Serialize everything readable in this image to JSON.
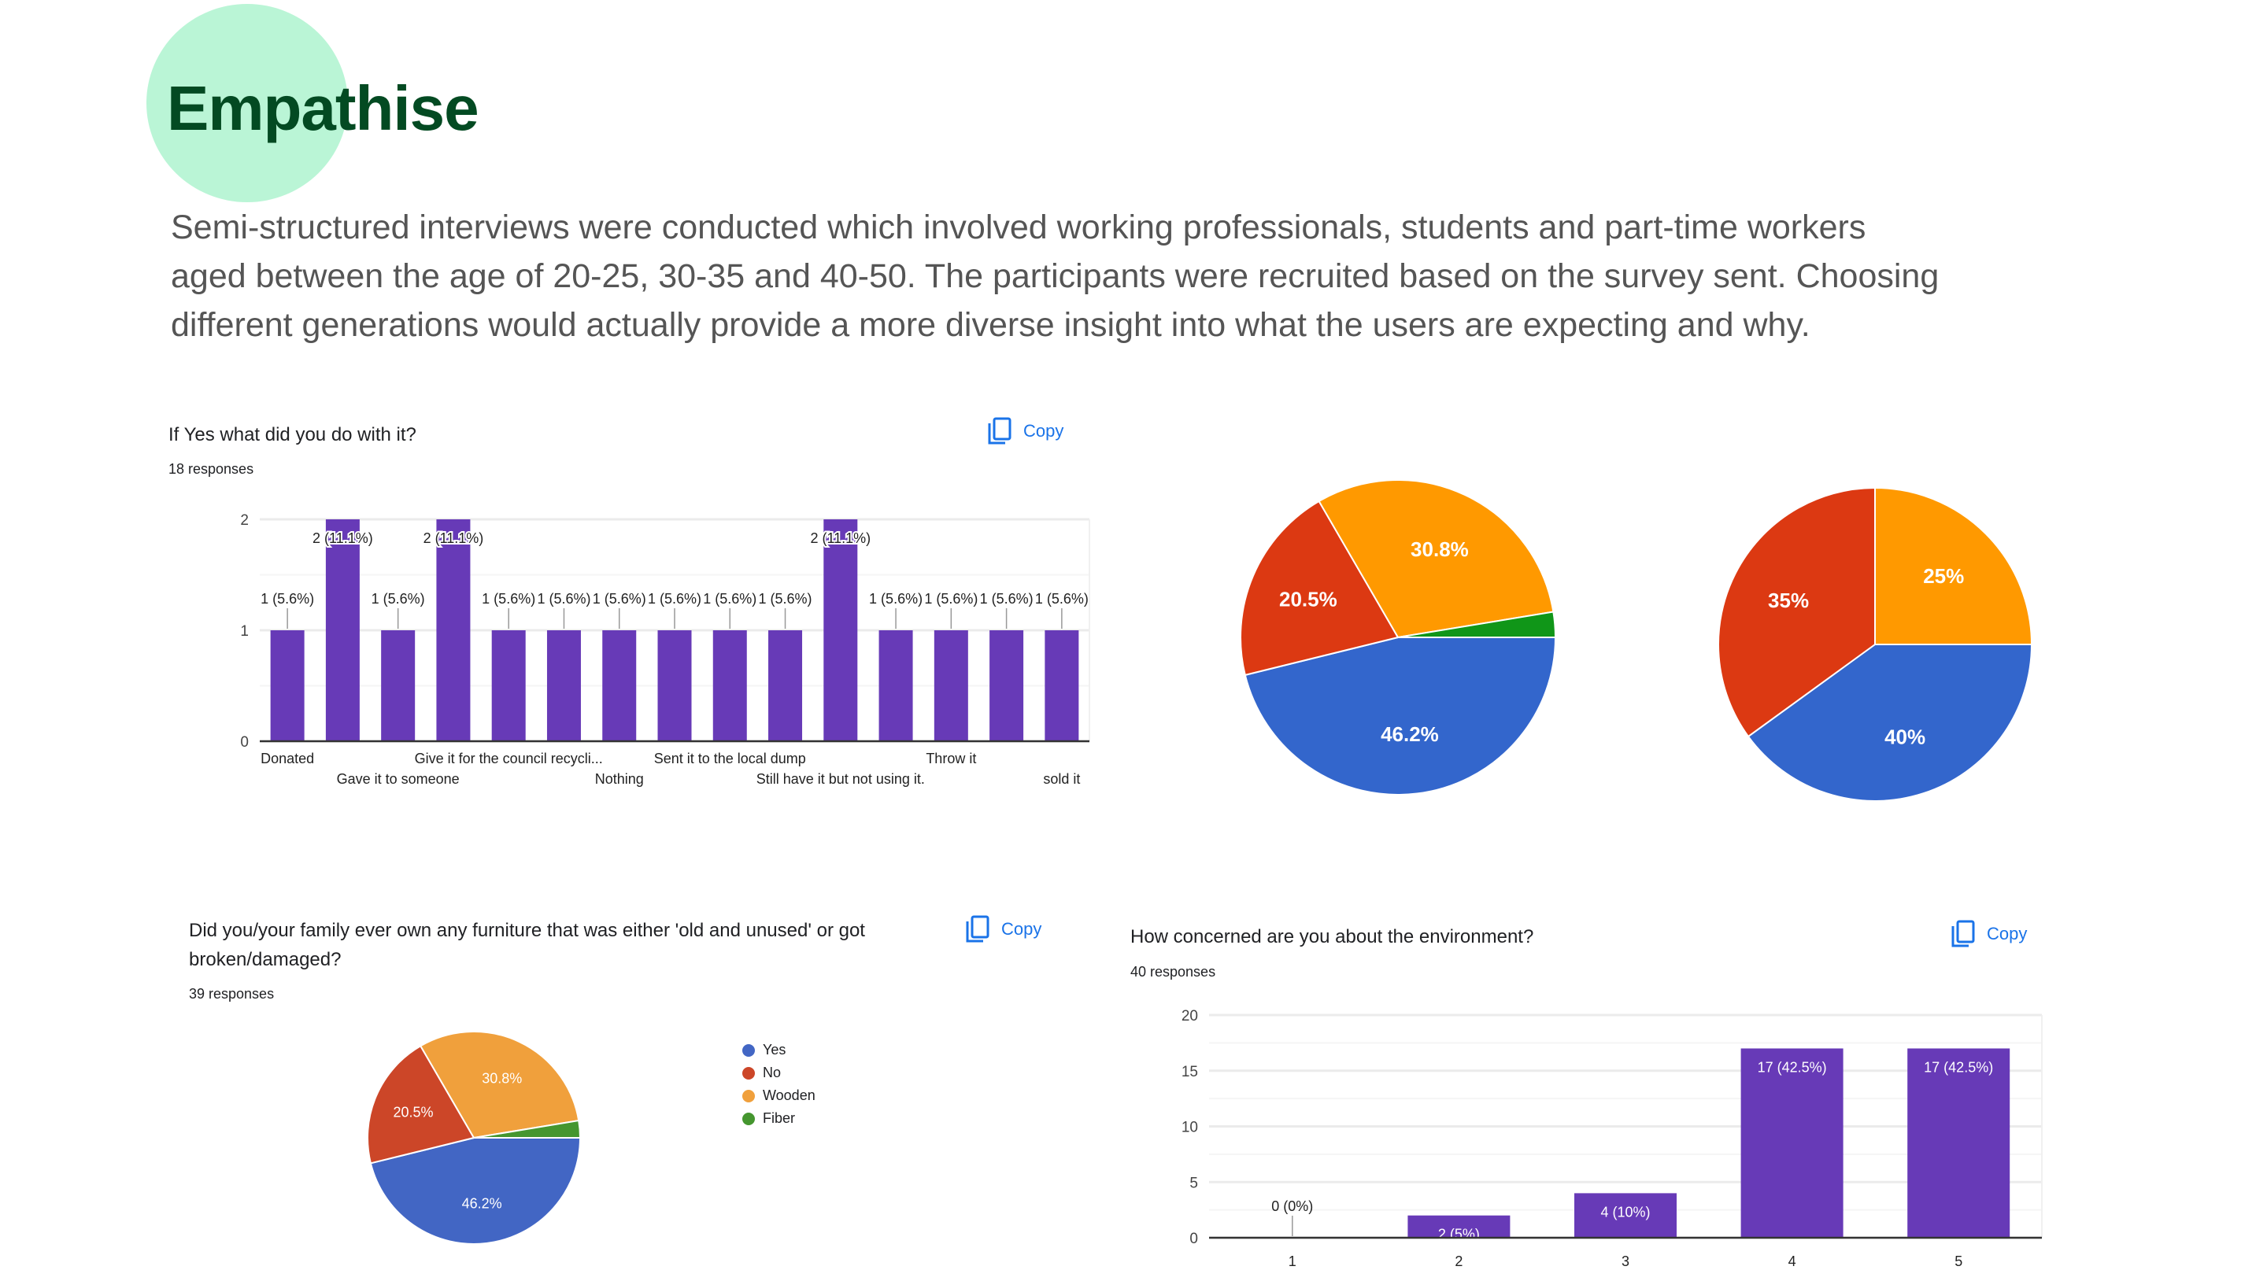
{
  "header": {
    "title": "Empathise",
    "paragraph_lines": [
      "Semi-structured interviews were conducted which involved working professionals, students and part-time workers",
      "aged between the age of 20-25, 30-35 and 40-50. The participants were recruited based on the survey sent. Choosing",
      "different generations would actually provide a more diverse insight into what the users are expecting and why."
    ]
  },
  "copy_label": "Copy",
  "colors": {
    "accent_circle": "#baf5d6",
    "title": "#034a22",
    "bar": "#673ab7",
    "copy": "#1a73e8"
  },
  "chart_data": [
    {
      "type": "bar",
      "title": "If Yes what did you do with it?",
      "responses": "18 responses",
      "categories": [
        "Donated",
        "",
        "Gave it to someone",
        "",
        "Give it for the council recycli...",
        "",
        "Nothing",
        "",
        "Sent it to the local dump",
        "",
        "Still have it but not using it.",
        "",
        "Throw it",
        "",
        "sold it"
      ],
      "values": [
        1,
        2,
        1,
        2,
        1,
        1,
        1,
        1,
        1,
        1,
        2,
        1,
        1,
        1,
        1
      ],
      "labels": [
        "1 (5.6%)",
        "2 (11.1%)",
        "1 (5.6%)",
        "2 (11.1%)",
        "1 (5.6%)",
        "1 (5.6%)",
        "1 (5.6%)",
        "1 (5.6%)",
        "1 (5.6%)",
        "1 (5.6%)",
        "2 (11.1%)",
        "1 (5.6%)",
        "1 (5.6%)",
        "1 (5.6%)",
        "1 (5.6%)"
      ],
      "yticks": [
        0,
        1,
        2
      ],
      "ylim": [
        0,
        2
      ],
      "grid": true
    },
    {
      "type": "pie",
      "categories": [
        "Yes",
        "No",
        "Wooden",
        "Fiber"
      ],
      "values": [
        46.2,
        20.5,
        30.8,
        2.6
      ],
      "labels": [
        "46.2%",
        "20.5%",
        "30.8%",
        ""
      ],
      "colors": [
        "#3366cc",
        "#dc3912",
        "#ff9900",
        "#109618"
      ]
    },
    {
      "type": "pie",
      "categories": [
        "Orange",
        "Blue",
        "Red"
      ],
      "values": [
        25,
        40,
        35
      ],
      "labels": [
        "25%",
        "40%",
        "35%"
      ],
      "colors": [
        "#ff9900",
        "#3366cc",
        "#dc3912"
      ]
    },
    {
      "type": "pie",
      "title": "Did you/your family ever own any furniture that was either 'old and unused' or got broken/damaged?",
      "responses": "39 responses",
      "categories": [
        "Yes",
        "No",
        "Wooden",
        "Fiber"
      ],
      "values": [
        46.2,
        20.5,
        30.8,
        2.6
      ],
      "labels": [
        "46.2%",
        "20.5%",
        "30.8%",
        ""
      ],
      "colors": [
        "#4266c4",
        "#cc4628",
        "#f0a03c",
        "#45962f"
      ],
      "legend": "right"
    },
    {
      "type": "bar",
      "title": "How concerned are you about the environment?",
      "responses": "40 responses",
      "categories": [
        "1",
        "2",
        "3",
        "4",
        "5"
      ],
      "values": [
        0,
        2,
        4,
        17,
        17
      ],
      "labels": [
        "0 (0%)",
        "2 (5%)",
        "4 (10%)",
        "17 (42.5%)",
        "17 (42.5%)"
      ],
      "yticks": [
        0,
        5,
        10,
        15,
        20
      ],
      "ylim": [
        0,
        20
      ],
      "grid": true
    }
  ]
}
